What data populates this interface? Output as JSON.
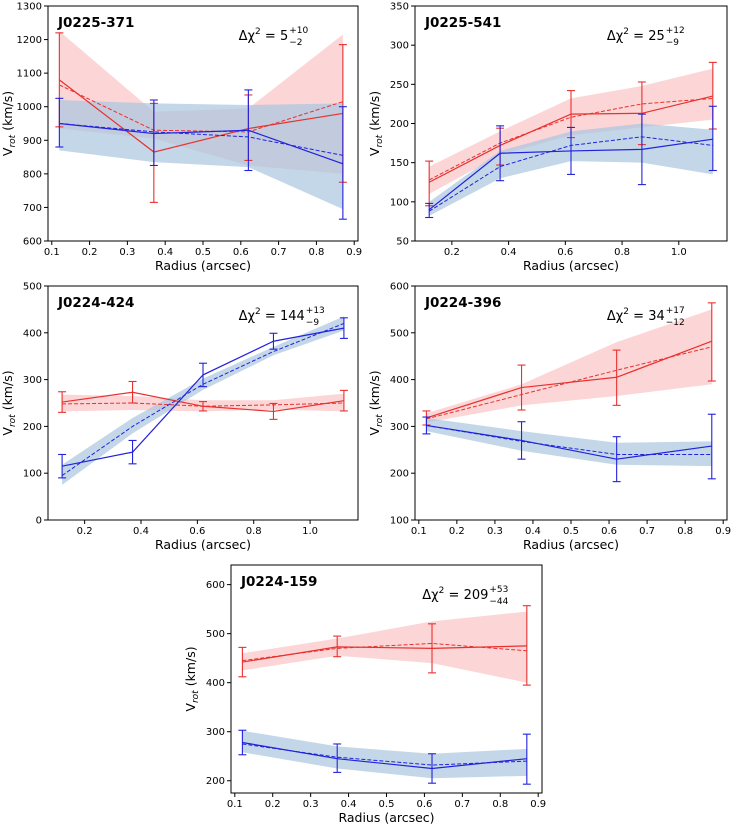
{
  "figure": {
    "xlabel": "Radius (arcsec)",
    "ylabel_main": "V",
    "ylabel_sub": "rot",
    "ylabel_unit": " (km/s)"
  },
  "colors": {
    "red_line": "#e8312f",
    "red_band": "#fbc4c4",
    "blue_line": "#2222dd",
    "blue_band": "#a9c6e0"
  },
  "chart_data": [
    {
      "type": "line",
      "title": "J0225-371",
      "annotation": {
        "prefix": "Δχ",
        "power": "2",
        "eq": " = ",
        "value": "5",
        "upper": "+10",
        "lower": "−2"
      },
      "xlabel": "Radius (arcsec)",
      "ylabel": "Vrot (km/s)",
      "xlim": [
        0.09,
        0.91
      ],
      "ylim": [
        600,
        1300
      ],
      "xticks": [
        "0.1",
        "0.2",
        "0.3",
        "0.4",
        "0.5",
        "0.6",
        "0.7",
        "0.8",
        "0.9"
      ],
      "yticks": [
        "600",
        "700",
        "800",
        "900",
        "1000",
        "1100",
        "1200",
        "1300"
      ],
      "series": [
        {
          "name": "red",
          "x": [
            0.12,
            0.37,
            0.62,
            0.87
          ],
          "values": [
            1080,
            865,
            935,
            980
          ],
          "err_lo": [
            140,
            150,
            95,
            205
          ],
          "err_hi": [
            140,
            145,
            100,
            205
          ],
          "model": [
            1065,
            930,
            925,
            1015
          ],
          "band_lo": [
            935,
            905,
            825,
            800
          ],
          "band_hi": [
            1225,
            985,
            995,
            1215
          ]
        },
        {
          "name": "blue",
          "x": [
            0.12,
            0.37,
            0.62,
            0.87
          ],
          "values": [
            950,
            920,
            930,
            830
          ],
          "err_lo": [
            70,
            95,
            120,
            165
          ],
          "err_hi": [
            75,
            100,
            120,
            170
          ],
          "model": [
            950,
            925,
            910,
            855
          ],
          "band_lo": [
            870,
            835,
            820,
            695
          ],
          "band_hi": [
            1020,
            1010,
            1005,
            1010
          ]
        }
      ]
    },
    {
      "type": "line",
      "title": "J0225-541",
      "annotation": {
        "prefix": "Δχ",
        "power": "2",
        "eq": " = ",
        "value": "25",
        "upper": "+12",
        "lower": "−9"
      },
      "xlabel": "Radius (arcsec)",
      "ylabel": "Vrot (km/s)",
      "xlim": [
        0.07,
        1.17
      ],
      "ylim": [
        50,
        350
      ],
      "xticks": [
        "0.2",
        "0.4",
        "0.6",
        "0.8",
        "1.0"
      ],
      "yticks": [
        "50",
        "100",
        "150",
        "200",
        "250",
        "300",
        "350"
      ],
      "series": [
        {
          "name": "red",
          "x": [
            0.12,
            0.37,
            0.62,
            0.87,
            1.12
          ],
          "values": [
            125,
            172,
            212,
            213,
            235
          ],
          "err_lo": [
            30,
            25,
            30,
            40,
            42
          ],
          "err_hi": [
            27,
            22,
            30,
            40,
            43
          ],
          "model": [
            128,
            175,
            208,
            225,
            232
          ],
          "band_lo": [
            110,
            160,
            185,
            195,
            205
          ],
          "band_hi": [
            145,
            190,
            232,
            248,
            270
          ]
        },
        {
          "name": "blue",
          "x": [
            0.12,
            0.37,
            0.62,
            0.87,
            1.12
          ],
          "values": [
            90,
            162,
            165,
            167,
            180
          ],
          "err_lo": [
            10,
            35,
            30,
            45,
            40
          ],
          "err_hi": [
            8,
            35,
            30,
            45,
            42
          ],
          "model": [
            88,
            145,
            172,
            183,
            172
          ],
          "band_lo": [
            82,
            130,
            152,
            150,
            135
          ],
          "band_hi": [
            100,
            165,
            190,
            200,
            192
          ]
        }
      ]
    },
    {
      "type": "line",
      "title": "J0224-424",
      "annotation": {
        "prefix": "Δχ",
        "power": "2",
        "eq": " = ",
        "value": "144",
        "upper": "+13",
        "lower": "−9"
      },
      "xlabel": "Radius (arcsec)",
      "ylabel": "Vrot (km/s)",
      "xlim": [
        0.07,
        1.17
      ],
      "ylim": [
        0,
        500
      ],
      "xticks": [
        "0.2",
        "0.4",
        "0.6",
        "0.8",
        "1.0"
      ],
      "yticks": [
        "0",
        "100",
        "200",
        "300",
        "400",
        "500"
      ],
      "series": [
        {
          "name": "red",
          "x": [
            0.12,
            0.37,
            0.62,
            0.87,
            1.12
          ],
          "values": [
            252,
            273,
            243,
            232,
            255
          ],
          "err_lo": [
            22,
            23,
            10,
            17,
            22
          ],
          "err_hi": [
            22,
            23,
            10,
            17,
            22
          ],
          "model": [
            248,
            250,
            243,
            246,
            250
          ],
          "band_lo": [
            232,
            235,
            232,
            236,
            232
          ],
          "band_hi": [
            268,
            265,
            256,
            256,
            270
          ]
        },
        {
          "name": "blue",
          "x": [
            0.12,
            0.37,
            0.62,
            0.87,
            1.12
          ],
          "values": [
            115,
            145,
            310,
            382,
            410
          ],
          "err_lo": [
            25,
            25,
            25,
            17,
            22
          ],
          "err_hi": [
            25,
            25,
            25,
            17,
            22
          ],
          "model": [
            95,
            200,
            290,
            360,
            420
          ],
          "band_lo": [
            75,
            185,
            278,
            352,
            405
          ],
          "band_hi": [
            118,
            218,
            302,
            370,
            435
          ]
        }
      ]
    },
    {
      "type": "line",
      "title": "J0224-396",
      "annotation": {
        "prefix": "Δχ",
        "power": "2",
        "eq": " = ",
        "value": "34",
        "upper": "+17",
        "lower": "−12"
      },
      "xlabel": "Radius (arcsec)",
      "ylabel": "Vrot (km/s)",
      "xlim": [
        0.09,
        0.91
      ],
      "ylim": [
        100,
        600
      ],
      "xticks": [
        "0.1",
        "0.2",
        "0.3",
        "0.4",
        "0.5",
        "0.6",
        "0.7",
        "0.8",
        "0.9"
      ],
      "yticks": [
        "100",
        "200",
        "300",
        "400",
        "500",
        "600"
      ],
      "series": [
        {
          "name": "red",
          "x": [
            0.12,
            0.37,
            0.62,
            0.87
          ],
          "values": [
            318,
            383,
            405,
            482
          ],
          "err_lo": [
            15,
            48,
            60,
            85
          ],
          "err_hi": [
            15,
            48,
            58,
            82
          ],
          "model": [
            316,
            368,
            420,
            470
          ],
          "band_lo": [
            308,
            345,
            365,
            390
          ],
          "band_hi": [
            328,
            390,
            480,
            550
          ]
        },
        {
          "name": "blue",
          "x": [
            0.12,
            0.37,
            0.62,
            0.87
          ],
          "values": [
            302,
            270,
            230,
            258
          ],
          "err_lo": [
            18,
            40,
            48,
            70
          ],
          "err_hi": [
            18,
            40,
            48,
            68
          ],
          "model": [
            302,
            268,
            240,
            240
          ],
          "band_lo": [
            290,
            248,
            218,
            215
          ],
          "band_hi": [
            318,
            290,
            265,
            268
          ]
        }
      ]
    },
    {
      "type": "line",
      "title": "J0224-159",
      "annotation": {
        "prefix": "Δχ",
        "power": "2",
        "eq": " = ",
        "value": "209",
        "upper": "+53",
        "lower": "−44"
      },
      "xlabel": "Radius (arcsec)",
      "ylabel": "Vrot (km/s)",
      "xlim": [
        0.09,
        0.91
      ],
      "ylim": [
        175,
        640
      ],
      "xticks": [
        "0.1",
        "0.2",
        "0.3",
        "0.4",
        "0.5",
        "0.6",
        "0.7",
        "0.8",
        "0.9"
      ],
      "yticks": [
        "200",
        "300",
        "400",
        "500",
        "600"
      ],
      "series": [
        {
          "name": "red",
          "x": [
            0.12,
            0.37,
            0.62,
            0.87
          ],
          "values": [
            442,
            473,
            470,
            475
          ],
          "err_lo": [
            30,
            20,
            50,
            80
          ],
          "err_hi": [
            30,
            22,
            50,
            82
          ],
          "model": [
            445,
            470,
            480,
            465
          ],
          "band_lo": [
            425,
            455,
            440,
            400
          ],
          "band_hi": [
            460,
            490,
            525,
            545
          ]
        },
        {
          "name": "blue",
          "x": [
            0.12,
            0.37,
            0.62,
            0.87
          ],
          "values": [
            278,
            245,
            225,
            245
          ],
          "err_lo": [
            25,
            28,
            30,
            52
          ],
          "err_hi": [
            25,
            30,
            30,
            50
          ],
          "model": [
            275,
            248,
            232,
            240
          ],
          "band_lo": [
            258,
            225,
            205,
            210
          ],
          "band_hi": [
            302,
            270,
            255,
            265
          ]
        }
      ]
    }
  ]
}
